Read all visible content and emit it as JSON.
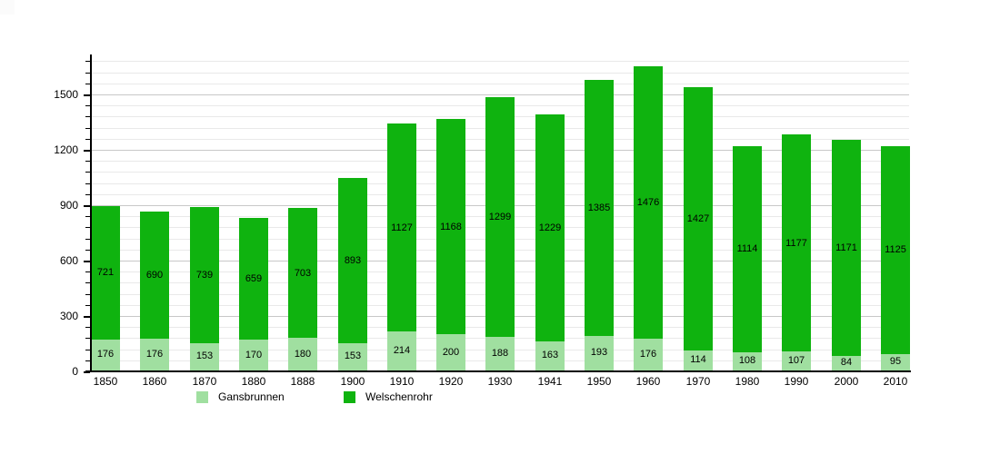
{
  "chart_data": {
    "type": "bar",
    "stacked": true,
    "title": "",
    "xlabel": "",
    "ylabel": "",
    "categories": [
      "1850",
      "1860",
      "1870",
      "1880",
      "1888",
      "1900",
      "1910",
      "1920",
      "1930",
      "1941",
      "1950",
      "1960",
      "1970",
      "1980",
      "1990",
      "2000",
      "2010"
    ],
    "series": [
      {
        "name": "Gansbrunnen",
        "color": "#a0dfa0",
        "values": [
          176,
          176,
          153,
          170,
          180,
          153,
          214,
          200,
          188,
          163,
          193,
          176,
          114,
          108,
          107,
          84,
          95
        ]
      },
      {
        "name": "Welschenrohr",
        "color": "#0fb30f",
        "values": [
          721,
          690,
          739,
          659,
          703,
          893,
          1127,
          1168,
          1299,
          1229,
          1385,
          1476,
          1427,
          1114,
          1177,
          1171,
          1125
        ]
      }
    ],
    "ylim": [
      0,
      1710
    ],
    "yticks": [
      0,
      300,
      600,
      900,
      1200,
      1500
    ],
    "minor_gridline_step": 60,
    "grid": true,
    "value_labels": true,
    "legend": {
      "position": "bottom",
      "entries": [
        "Gansbrunnen",
        "Welschenrohr"
      ]
    }
  },
  "style": {
    "background": "#ffffff",
    "corner_artifact_color": "#fbfbfb",
    "major_grid_color": "#c8c8c8",
    "minor_grid_color": "#e9e9e9",
    "axis_color": "#000000",
    "text_color": "#000000"
  }
}
